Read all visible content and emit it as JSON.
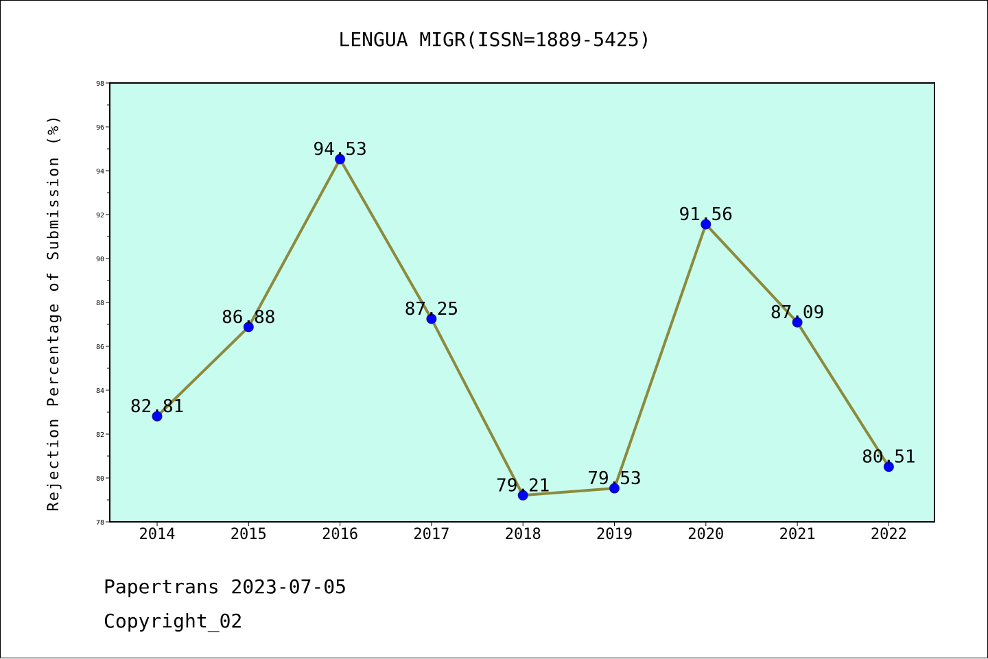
{
  "chart_data": {
    "type": "line",
    "title": "LENGUA MIGR(ISSN=1889-5425)",
    "xlabel": "",
    "ylabel": "Rejection Percentage of Submission (%)",
    "categories": [
      "2014",
      "2015",
      "2016",
      "2017",
      "2018",
      "2019",
      "2020",
      "2021",
      "2022"
    ],
    "values": [
      82.81,
      86.88,
      94.53,
      87.25,
      79.21,
      79.53,
      91.56,
      87.09,
      80.51
    ],
    "data_labels": [
      "82.81",
      "86.88",
      "94.53",
      "87.25",
      "79.21",
      "79.53",
      "91.56",
      "87.09",
      "80.51"
    ],
    "ylim": [
      78,
      98
    ],
    "yticks": [
      "78",
      "80",
      "82",
      "84",
      "86",
      "88",
      "90",
      "92",
      "94",
      "96",
      "98"
    ],
    "grid": false,
    "legend": "none",
    "colors": {
      "plot_background": "#c8fcee",
      "line": "#8c8a3c",
      "marker": "#0000ff"
    }
  },
  "footer": {
    "source": "Papertrans 2023-07-05",
    "copyright": "Copyright_02"
  }
}
